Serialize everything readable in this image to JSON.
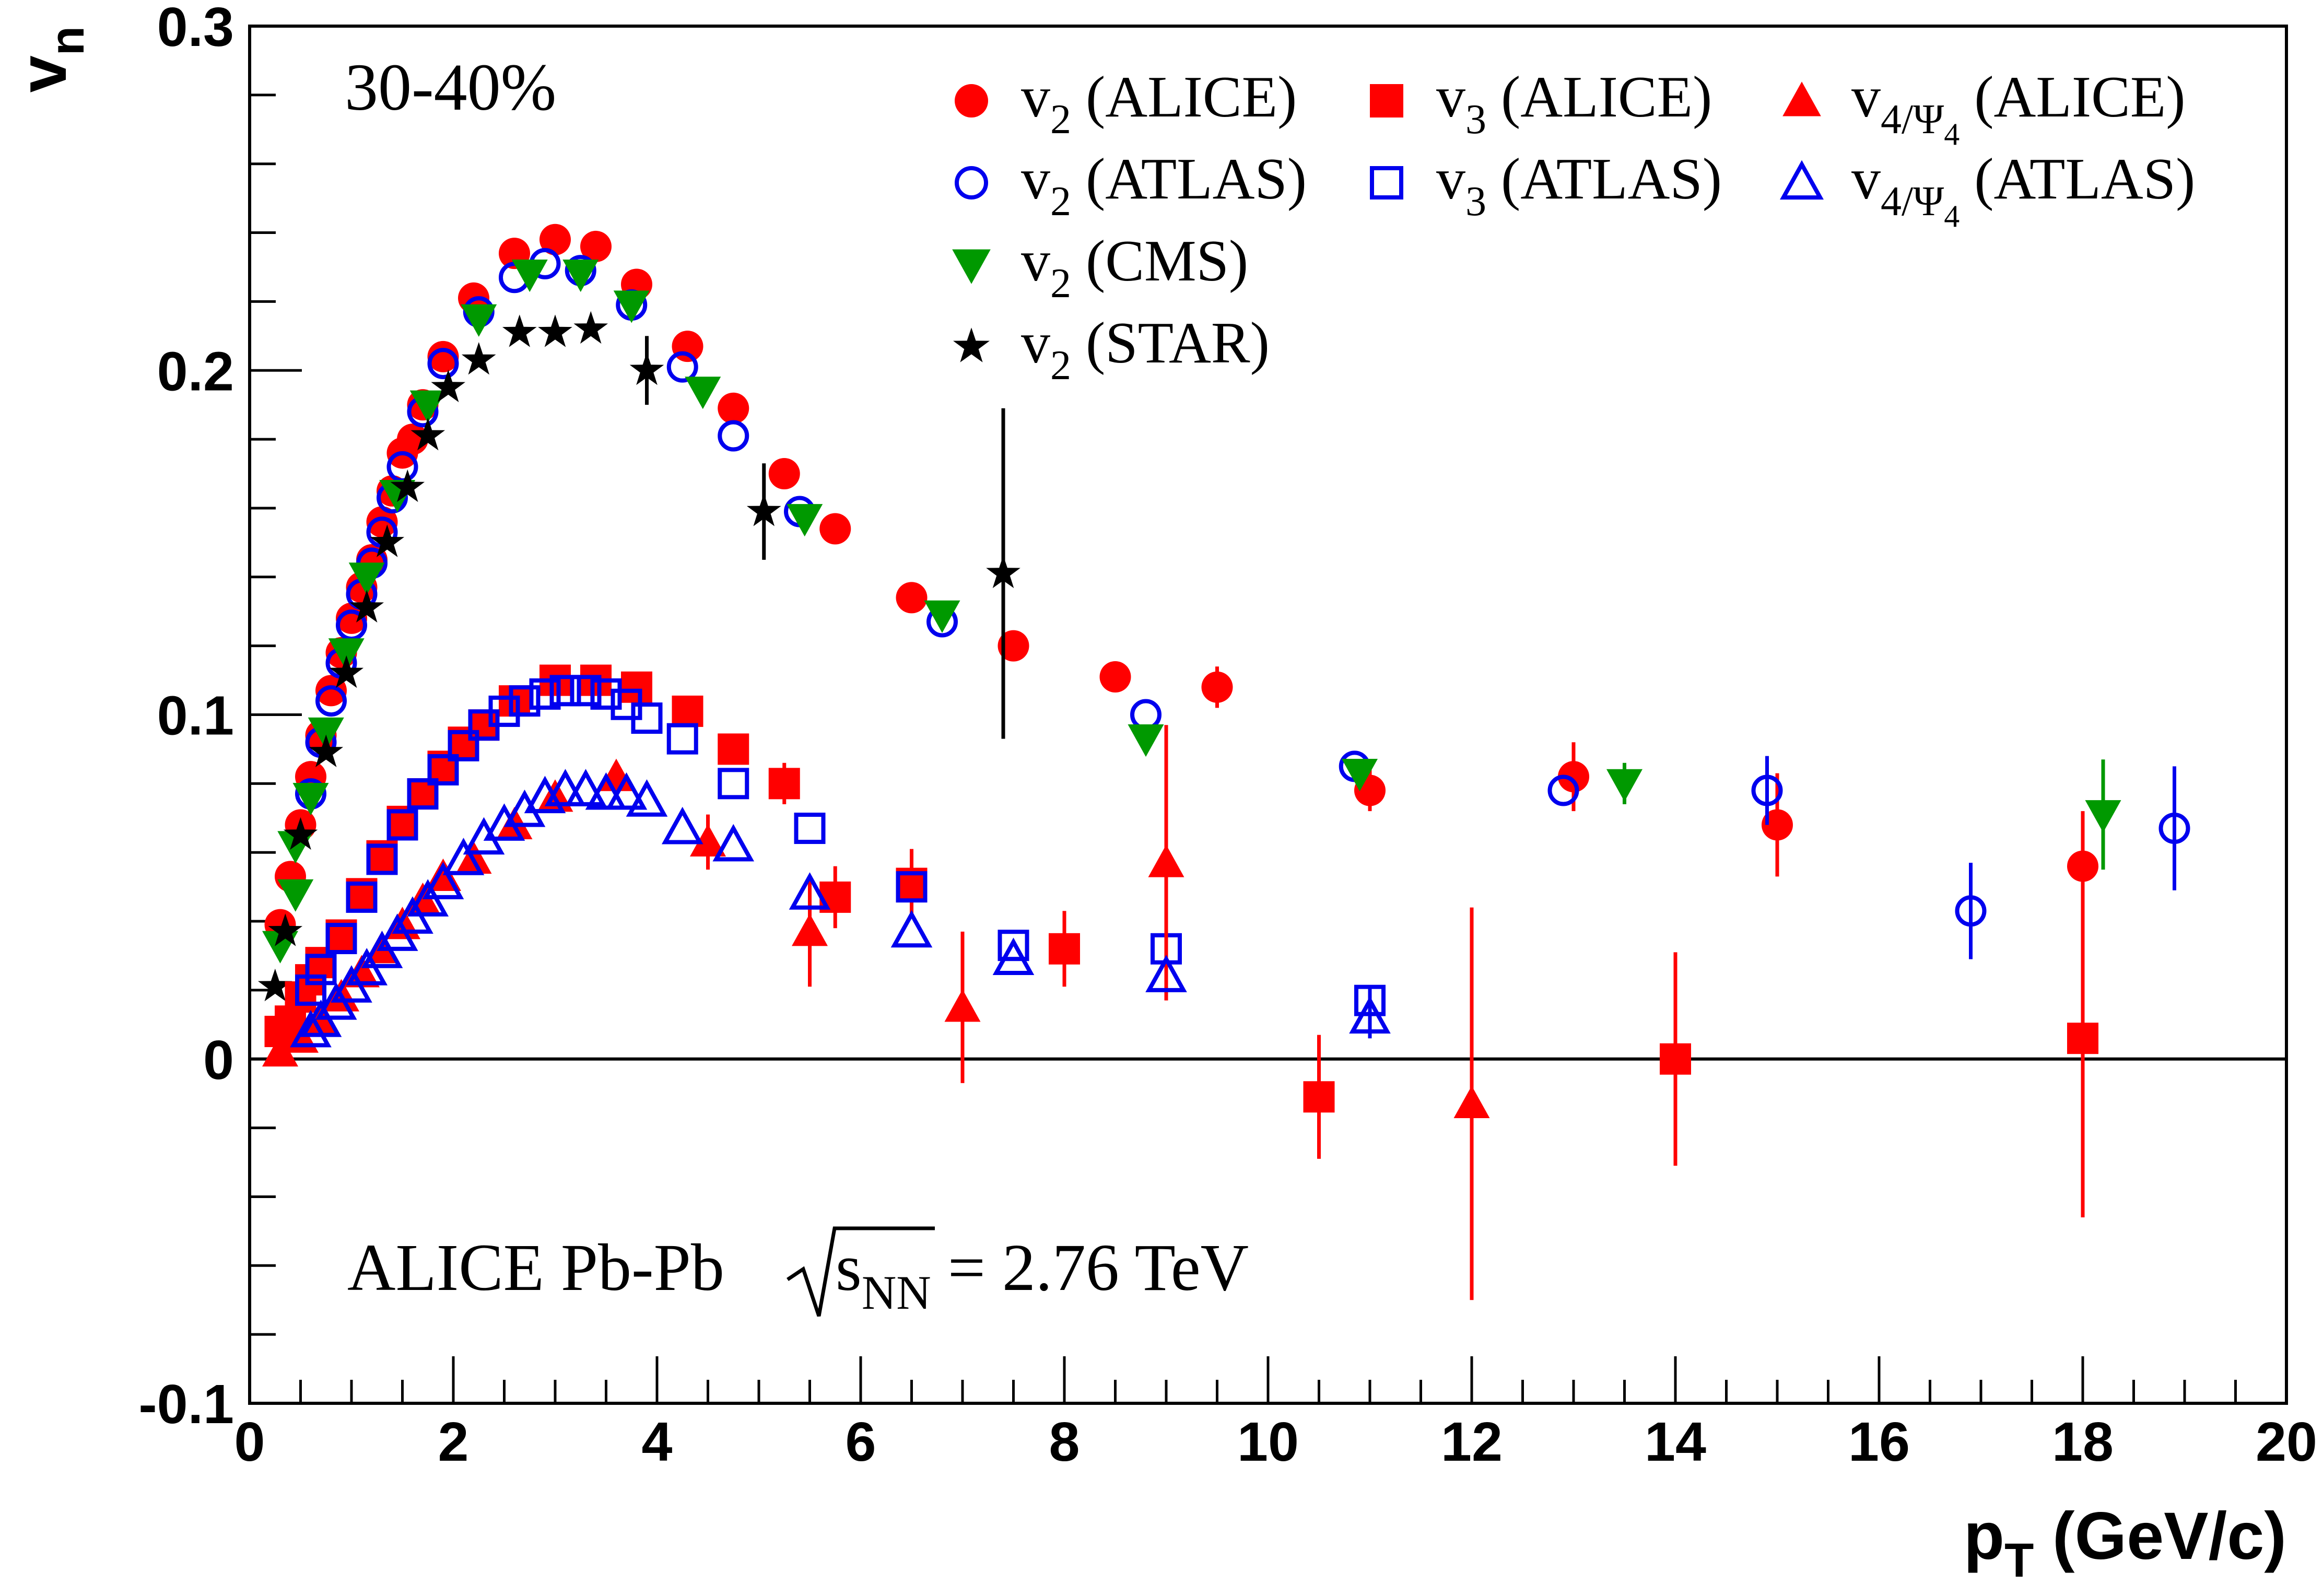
{
  "chart_data": {
    "type": "scatter",
    "xlim": [
      0,
      20
    ],
    "ylim": [
      -0.1,
      0.3
    ],
    "x_ticks": [
      "0",
      "2",
      "4",
      "6",
      "8",
      "10",
      "12",
      "14",
      "16",
      "18",
      "20"
    ],
    "y_ticks": [
      "-0.1",
      "0",
      "0.1",
      "0.2",
      "0.3"
    ],
    "xlabel": {
      "main": "p",
      "sub": "T",
      "rest": " (GeV/c)"
    },
    "ylabel": {
      "main": "v",
      "sub": "n"
    },
    "centrality_label": "30-40%",
    "experiment_label": {
      "prefix": "ALICE Pb-Pb ",
      "s": "s",
      "s_sub": "NN",
      "suffix": " = 2.76 TeV"
    },
    "grid": false,
    "zero_line": true,
    "legend_position": "top-right",
    "series": [
      {
        "name": "v2 (ALICE)",
        "legend": {
          "v": "v",
          "sub": "2",
          "rest": " (ALICE)"
        },
        "marker": "circle",
        "filled": true,
        "color": "#ff0000",
        "points": [
          [
            0.3,
            0.039,
            0
          ],
          [
            0.4,
            0.053,
            0
          ],
          [
            0.5,
            0.068,
            0
          ],
          [
            0.6,
            0.082,
            0
          ],
          [
            0.7,
            0.094,
            0
          ],
          [
            0.8,
            0.107,
            0
          ],
          [
            0.9,
            0.118,
            0
          ],
          [
            1.0,
            0.128,
            0
          ],
          [
            1.1,
            0.137,
            0
          ],
          [
            1.2,
            0.145,
            0
          ],
          [
            1.3,
            0.156,
            0
          ],
          [
            1.4,
            0.165,
            0
          ],
          [
            1.5,
            0.176,
            0
          ],
          [
            1.6,
            0.18,
            0
          ],
          [
            1.7,
            0.19,
            0
          ],
          [
            1.9,
            0.204,
            0
          ],
          [
            2.2,
            0.221,
            0
          ],
          [
            2.6,
            0.234,
            0
          ],
          [
            3.0,
            0.238,
            0
          ],
          [
            3.4,
            0.236,
            0
          ],
          [
            3.8,
            0.225,
            0
          ],
          [
            4.3,
            0.207,
            0
          ],
          [
            4.75,
            0.189,
            0
          ],
          [
            5.25,
            0.17,
            0
          ],
          [
            5.75,
            0.154,
            0
          ],
          [
            6.5,
            0.134,
            0
          ],
          [
            7.5,
            0.12,
            0
          ],
          [
            8.5,
            0.111,
            0.004
          ],
          [
            9.5,
            0.108,
            0.006
          ],
          [
            11.0,
            0.078,
            0.006
          ],
          [
            13.0,
            0.082,
            0.01
          ],
          [
            15.0,
            0.068,
            0.015
          ],
          [
            18.0,
            0.056,
            0.016
          ]
        ]
      },
      {
        "name": "v2 (ATLAS)",
        "legend": {
          "v": "v",
          "sub": "2",
          "rest": " (ATLAS)"
        },
        "marker": "circle",
        "filled": false,
        "color": "#0000ee",
        "points": [
          [
            0.6,
            0.077,
            0
          ],
          [
            0.7,
            0.092,
            0
          ],
          [
            0.8,
            0.104,
            0
          ],
          [
            0.9,
            0.115,
            0
          ],
          [
            1.0,
            0.126,
            0
          ],
          [
            1.1,
            0.135,
            0
          ],
          [
            1.2,
            0.144,
            0
          ],
          [
            1.3,
            0.153,
            0
          ],
          [
            1.4,
            0.163,
            0
          ],
          [
            1.5,
            0.172,
            0
          ],
          [
            1.7,
            0.188,
            0
          ],
          [
            1.9,
            0.202,
            0
          ],
          [
            2.25,
            0.217,
            0
          ],
          [
            2.6,
            0.227,
            0
          ],
          [
            2.9,
            0.231,
            0
          ],
          [
            3.25,
            0.229,
            0
          ],
          [
            3.75,
            0.219,
            0
          ],
          [
            4.25,
            0.201,
            0
          ],
          [
            4.75,
            0.181,
            0
          ],
          [
            5.4,
            0.159,
            0
          ],
          [
            6.8,
            0.127,
            0
          ],
          [
            8.8,
            0.1,
            0
          ],
          [
            10.85,
            0.085,
            0
          ],
          [
            12.9,
            0.078,
            0
          ],
          [
            14.9,
            0.078,
            0.01
          ],
          [
            16.9,
            0.043,
            0.014
          ],
          [
            18.9,
            0.067,
            0.018
          ]
        ]
      },
      {
        "name": "v2 (CMS)",
        "legend": {
          "v": "v",
          "sub": "2",
          "rest": " (CMS)"
        },
        "marker": "triangle-down",
        "filled": true,
        "color": "#009900",
        "points": [
          [
            0.3,
            0.033,
            0
          ],
          [
            0.45,
            0.048,
            0
          ],
          [
            0.45,
            0.062,
            0
          ],
          [
            0.6,
            0.076,
            0
          ],
          [
            0.75,
            0.095,
            0
          ],
          [
            0.95,
            0.118,
            0
          ],
          [
            1.15,
            0.14,
            0
          ],
          [
            1.45,
            0.164,
            0
          ],
          [
            1.75,
            0.19,
            0
          ],
          [
            2.25,
            0.215,
            0
          ],
          [
            2.75,
            0.228,
            0
          ],
          [
            3.25,
            0.228,
            0
          ],
          [
            3.75,
            0.219,
            0
          ],
          [
            4.45,
            0.194,
            0
          ],
          [
            5.45,
            0.157,
            0
          ],
          [
            6.8,
            0.129,
            0
          ],
          [
            8.8,
            0.093,
            0
          ],
          [
            10.9,
            0.083,
            0
          ],
          [
            13.5,
            0.08,
            0.006
          ],
          [
            18.2,
            0.071,
            0.016
          ]
        ]
      },
      {
        "name": "v2 (STAR)",
        "legend": {
          "v": "v",
          "sub": "2",
          "rest": " (STAR)"
        },
        "marker": "star",
        "filled": true,
        "color": "#000000",
        "points": [
          [
            0.25,
            0.021,
            0
          ],
          [
            0.35,
            0.037,
            0
          ],
          [
            0.5,
            0.065,
            0
          ],
          [
            0.75,
            0.089,
            0
          ],
          [
            0.95,
            0.112,
            0
          ],
          [
            1.15,
            0.131,
            0
          ],
          [
            1.35,
            0.15,
            0
          ],
          [
            1.55,
            0.166,
            0
          ],
          [
            1.75,
            0.181,
            0
          ],
          [
            1.95,
            0.195,
            0
          ],
          [
            2.25,
            0.203,
            0
          ],
          [
            2.65,
            0.211,
            0
          ],
          [
            3.0,
            0.211,
            0
          ],
          [
            3.35,
            0.212,
            0
          ],
          [
            3.9,
            0.2,
            0.01
          ],
          [
            5.05,
            0.159,
            0.014
          ],
          [
            7.4,
            0.141,
            0.048
          ]
        ]
      },
      {
        "name": "v3 (ALICE)",
        "legend": {
          "v": "v",
          "sub": "3",
          "rest": " (ALICE)"
        },
        "marker": "square",
        "filled": true,
        "color": "#ff0000",
        "points": [
          [
            0.3,
            0.008,
            0
          ],
          [
            0.4,
            0.011,
            0
          ],
          [
            0.5,
            0.018,
            0
          ],
          [
            0.6,
            0.023,
            0
          ],
          [
            0.7,
            0.028,
            0
          ],
          [
            0.9,
            0.036,
            0
          ],
          [
            1.1,
            0.048,
            0
          ],
          [
            1.3,
            0.059,
            0
          ],
          [
            1.5,
            0.069,
            0
          ],
          [
            1.7,
            0.077,
            0
          ],
          [
            1.9,
            0.085,
            0
          ],
          [
            2.1,
            0.092,
            0
          ],
          [
            2.3,
            0.097,
            0
          ],
          [
            2.6,
            0.104,
            0
          ],
          [
            3.0,
            0.11,
            0
          ],
          [
            3.4,
            0.11,
            0
          ],
          [
            3.8,
            0.108,
            0
          ],
          [
            4.3,
            0.101,
            0
          ],
          [
            4.75,
            0.09,
            0.004
          ],
          [
            5.25,
            0.08,
            0.006
          ],
          [
            5.75,
            0.047,
            0.009
          ],
          [
            6.5,
            0.051,
            0.01
          ],
          [
            8.0,
            0.032,
            0.011
          ],
          [
            10.5,
            -0.011,
            0.018
          ],
          [
            14.0,
            0.0,
            0.031
          ],
          [
            18.0,
            0.006,
            0.052
          ]
        ]
      },
      {
        "name": "v3 (ATLAS)",
        "legend": {
          "v": "v",
          "sub": "3",
          "rest": " (ATLAS)"
        },
        "marker": "square",
        "filled": false,
        "color": "#0000ee",
        "points": [
          [
            0.6,
            0.02,
            0
          ],
          [
            0.7,
            0.026,
            0
          ],
          [
            0.9,
            0.035,
            0
          ],
          [
            1.1,
            0.047,
            0
          ],
          [
            1.3,
            0.058,
            0
          ],
          [
            1.5,
            0.068,
            0
          ],
          [
            1.7,
            0.077,
            0
          ],
          [
            1.9,
            0.084,
            0
          ],
          [
            2.1,
            0.091,
            0
          ],
          [
            2.3,
            0.097,
            0
          ],
          [
            2.5,
            0.101,
            0
          ],
          [
            2.7,
            0.104,
            0
          ],
          [
            2.9,
            0.106,
            0
          ],
          [
            3.1,
            0.107,
            0
          ],
          [
            3.3,
            0.107,
            0
          ],
          [
            3.5,
            0.106,
            0
          ],
          [
            3.7,
            0.103,
            0
          ],
          [
            3.9,
            0.099,
            0
          ],
          [
            4.25,
            0.093,
            0
          ],
          [
            4.75,
            0.08,
            0
          ],
          [
            5.5,
            0.067,
            0
          ],
          [
            6.5,
            0.05,
            0
          ],
          [
            7.5,
            0.033,
            0
          ],
          [
            9.0,
            0.032,
            0
          ],
          [
            11.0,
            0.017,
            0.004
          ]
        ]
      },
      {
        "name": "v4/Ψ4 (ALICE)",
        "legend": {
          "v": "v",
          "sub": "4/Ψ",
          "subsub": "4",
          "rest": " (ALICE)"
        },
        "marker": "triangle-up",
        "filled": true,
        "color": "#ff0000",
        "points": [
          [
            0.3,
            0.002,
            0
          ],
          [
            0.5,
            0.006,
            0
          ],
          [
            0.7,
            0.011,
            0
          ],
          [
            0.9,
            0.018,
            0
          ],
          [
            1.1,
            0.025,
            0
          ],
          [
            1.3,
            0.032,
            0
          ],
          [
            1.5,
            0.039,
            0
          ],
          [
            1.7,
            0.046,
            0
          ],
          [
            1.9,
            0.053,
            0
          ],
          [
            2.2,
            0.058,
            0
          ],
          [
            2.6,
            0.068,
            0
          ],
          [
            3.0,
            0.076,
            0
          ],
          [
            3.6,
            0.082,
            0
          ],
          [
            4.5,
            0.063,
            0.008
          ],
          [
            5.5,
            0.037,
            0.016
          ],
          [
            7.0,
            0.015,
            0.022
          ],
          [
            9.0,
            0.057,
            0.04
          ],
          [
            12.0,
            -0.013,
            0.057
          ]
        ]
      },
      {
        "name": "v4/Ψ4 (ATLAS)",
        "legend": {
          "v": "v",
          "sub": "4/Ψ",
          "subsub": "4",
          "rest": " (ATLAS)"
        },
        "marker": "triangle-up",
        "filled": false,
        "color": "#0000ee",
        "points": [
          [
            0.6,
            0.008,
            0
          ],
          [
            0.7,
            0.011,
            0
          ],
          [
            0.85,
            0.016,
            0
          ],
          [
            1.0,
            0.021,
            0
          ],
          [
            1.15,
            0.026,
            0
          ],
          [
            1.3,
            0.031,
            0
          ],
          [
            1.45,
            0.036,
            0
          ],
          [
            1.6,
            0.041,
            0
          ],
          [
            1.75,
            0.046,
            0
          ],
          [
            1.9,
            0.051,
            0
          ],
          [
            2.1,
            0.058,
            0
          ],
          [
            2.3,
            0.064,
            0
          ],
          [
            2.5,
            0.068,
            0
          ],
          [
            2.7,
            0.072,
            0
          ],
          [
            2.9,
            0.076,
            0
          ],
          [
            3.1,
            0.078,
            0
          ],
          [
            3.3,
            0.078,
            0
          ],
          [
            3.5,
            0.077,
            0
          ],
          [
            3.7,
            0.077,
            0
          ],
          [
            3.9,
            0.075,
            0
          ],
          [
            4.25,
            0.067,
            0
          ],
          [
            4.75,
            0.062,
            0
          ],
          [
            5.5,
            0.048,
            0
          ],
          [
            6.5,
            0.037,
            0
          ],
          [
            7.5,
            0.029,
            0
          ],
          [
            9.0,
            0.024,
            0
          ],
          [
            11.0,
            0.012,
            0.006
          ]
        ]
      }
    ]
  }
}
